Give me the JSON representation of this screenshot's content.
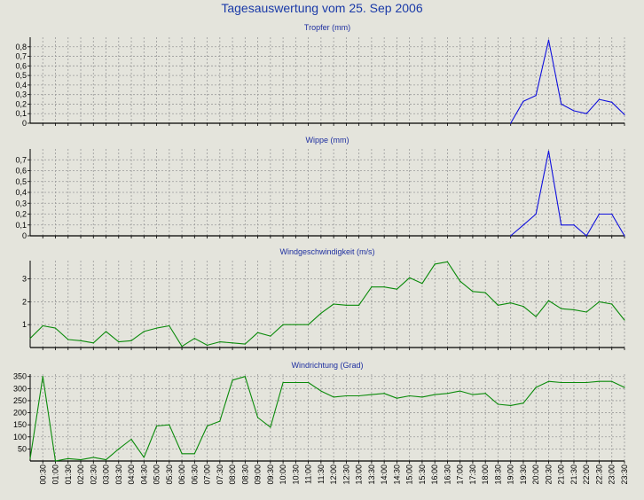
{
  "title": "Tagesauswertung vom 25. Sep 2006",
  "colors": {
    "background": "#e4e4dc",
    "title": "#1a3aa8",
    "panel_title": "#1e2fa0",
    "grid": "#9a9a9a",
    "blue_series": "#1010dd",
    "green_series": "#0a8a0a"
  },
  "chart_data": [
    {
      "type": "line",
      "title": "Tropfer (mm)",
      "ylim": [
        0,
        0.9
      ],
      "yticks": [
        0,
        0.1,
        0.2,
        0.3,
        0.4,
        0.5,
        0.6,
        0.7,
        0.8
      ],
      "ytick_labels": [
        "0",
        "0,1",
        "0,2",
        "0,3",
        "0,4",
        "0,5",
        "0,6",
        "0,7",
        "0,8"
      ],
      "color": "#1010dd",
      "x": [
        19.0,
        19.5,
        20.0,
        20.5,
        21.0,
        21.5,
        22.0,
        22.5,
        23.0,
        23.5
      ],
      "values": [
        0,
        0.23,
        0.29,
        0.87,
        0.2,
        0.13,
        0.1,
        0.25,
        0.22,
        0.09
      ]
    },
    {
      "type": "line",
      "title": "Wippe (mm)",
      "ylim": [
        0,
        0.8
      ],
      "yticks": [
        0,
        0.1,
        0.2,
        0.3,
        0.4,
        0.5,
        0.6,
        0.7
      ],
      "ytick_labels": [
        "0",
        "0,1",
        "0,2",
        "0,3",
        "0,4",
        "0,5",
        "0,6",
        "0,7"
      ],
      "color": "#1010dd",
      "x": [
        19.0,
        19.5,
        20.0,
        20.5,
        21.0,
        21.5,
        22.0,
        22.5,
        23.0,
        23.5
      ],
      "values": [
        0,
        0.1,
        0.2,
        0.78,
        0.1,
        0.1,
        0,
        0.2,
        0.2,
        0
      ]
    },
    {
      "type": "line",
      "title": "Windgeschwindigkeit (m/s)",
      "ylim": [
        0,
        3.8
      ],
      "yticks": [
        1,
        2,
        3
      ],
      "ytick_labels": [
        "1",
        "2",
        "3"
      ],
      "color": "#0a8a0a",
      "x": [
        0.0,
        0.5,
        1.0,
        1.5,
        2.0,
        2.5,
        3.0,
        3.5,
        4.0,
        4.5,
        5.0,
        5.5,
        6.0,
        6.5,
        7.0,
        7.5,
        8.0,
        8.5,
        9.0,
        9.5,
        10.0,
        10.5,
        11.0,
        11.5,
        12.0,
        12.5,
        13.0,
        13.5,
        14.0,
        14.5,
        15.0,
        15.5,
        16.0,
        16.5,
        17.0,
        17.5,
        18.0,
        18.5,
        19.0,
        19.5,
        20.0,
        20.5,
        21.0,
        21.5,
        22.0,
        22.5,
        23.0,
        23.5
      ],
      "values": [
        0.4,
        0.95,
        0.85,
        0.35,
        0.3,
        0.2,
        0.7,
        0.25,
        0.3,
        0.7,
        0.85,
        0.95,
        0.05,
        0.4,
        0.1,
        0.25,
        0.2,
        0.15,
        0.65,
        0.5,
        1.0,
        1.0,
        1.0,
        1.5,
        1.9,
        1.85,
        1.85,
        2.65,
        2.65,
        2.55,
        3.05,
        2.8,
        3.65,
        3.75,
        2.9,
        2.45,
        2.4,
        1.85,
        1.95,
        1.8,
        1.35,
        2.05,
        1.7,
        1.65,
        1.55,
        2.0,
        1.9,
        1.2
      ]
    },
    {
      "type": "line",
      "title": "Windrichtung (Grad)",
      "ylim": [
        0,
        360
      ],
      "yticks": [
        50,
        100,
        150,
        200,
        250,
        300,
        350
      ],
      "ytick_labels": [
        "50",
        "100",
        "150",
        "200",
        "250",
        "300",
        "350"
      ],
      "color": "#0a8a0a",
      "x": [
        0.0,
        0.5,
        1.0,
        1.5,
        2.0,
        2.5,
        3.0,
        3.5,
        4.0,
        4.5,
        5.0,
        5.5,
        6.0,
        6.5,
        7.0,
        7.5,
        8.0,
        8.5,
        9.0,
        9.5,
        10.0,
        10.5,
        11.0,
        11.5,
        12.0,
        12.5,
        13.0,
        13.5,
        14.0,
        14.5,
        15.0,
        15.5,
        16.0,
        16.5,
        17.0,
        17.5,
        18.0,
        18.5,
        19.0,
        19.5,
        20.0,
        20.5,
        21.0,
        21.5,
        22.0,
        22.5,
        23.0,
        23.5
      ],
      "values": [
        10,
        350,
        0,
        10,
        5,
        15,
        5,
        50,
        90,
        15,
        145,
        150,
        30,
        30,
        145,
        165,
        335,
        350,
        180,
        140,
        325,
        325,
        325,
        290,
        265,
        270,
        270,
        275,
        280,
        260,
        270,
        265,
        275,
        280,
        290,
        275,
        280,
        235,
        230,
        240,
        305,
        330,
        325,
        325,
        325,
        330,
        330,
        305
      ]
    }
  ],
  "x_axis": {
    "ticks": [
      0.5,
      1.0,
      1.5,
      2.0,
      2.5,
      3.0,
      3.5,
      4.0,
      4.5,
      5.0,
      5.5,
      6.0,
      6.5,
      7.0,
      7.5,
      8.0,
      8.5,
      9.0,
      9.5,
      10.0,
      10.5,
      11.0,
      11.5,
      12.0,
      12.5,
      13.0,
      13.5,
      14.0,
      14.5,
      15.0,
      15.5,
      16.0,
      16.5,
      17.0,
      17.5,
      18.0,
      18.5,
      19.0,
      19.5,
      20.0,
      20.5,
      21.0,
      21.5,
      22.0,
      22.5,
      23.0,
      23.5
    ],
    "labels": [
      "00:30",
      "01:00",
      "01:30",
      "02:00",
      "02:30",
      "03:00",
      "03:30",
      "04:00",
      "04:30",
      "05:00",
      "05:30",
      "06:00",
      "06:30",
      "07:00",
      "07:30",
      "08:00",
      "08:30",
      "09:00",
      "09:30",
      "10:00",
      "10:30",
      "11:00",
      "11:30",
      "12:00",
      "12:30",
      "13:00",
      "13:30",
      "14:00",
      "14:30",
      "15:00",
      "15:30",
      "16:00",
      "16:30",
      "17:00",
      "17:30",
      "18:00",
      "18:30",
      "19:00",
      "19:30",
      "20:00",
      "20:30",
      "21:00",
      "21:30",
      "22:00",
      "22:30",
      "23:00",
      "23:30"
    ],
    "range": [
      0,
      23.5
    ]
  }
}
